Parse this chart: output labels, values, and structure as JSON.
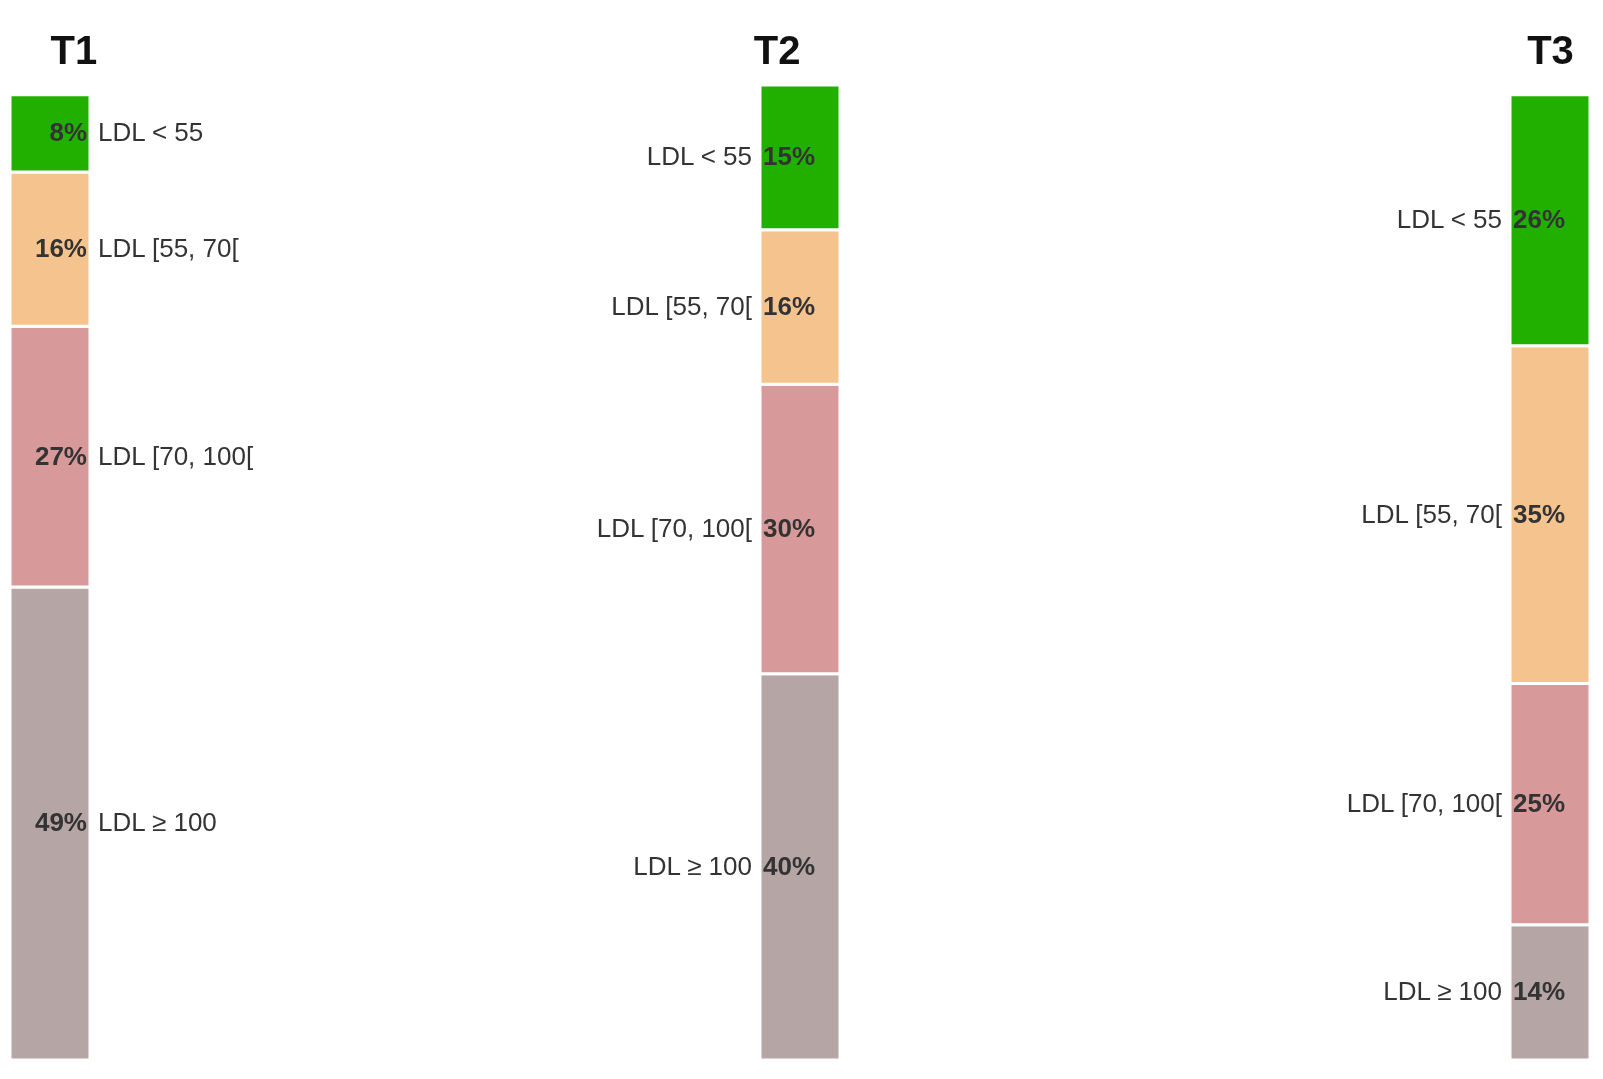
{
  "chart_data": {
    "type": "bar",
    "stacked": true,
    "categories": [
      "T1",
      "T2",
      "T3"
    ],
    "series": [
      {
        "name": "LDL ≥ 100",
        "color": "#b5a5a5",
        "values": [
          49,
          40,
          14
        ],
        "value_labels": [
          "49%",
          "40%",
          "14%"
        ]
      },
      {
        "name": "LDL [70, 100[",
        "color": "#d8999b",
        "values": [
          27,
          30,
          25
        ],
        "value_labels": [
          "27%",
          "30%",
          "25%"
        ]
      },
      {
        "name": "LDL [55, 70[",
        "color": "#f5c48e",
        "values": [
          16,
          16,
          35
        ],
        "value_labels": [
          "16%",
          "16%",
          "35%"
        ]
      },
      {
        "name": "LDL < 55",
        "color": "#22b000",
        "values": [
          8,
          15,
          26
        ],
        "value_labels": [
          "8%",
          "15%",
          "26%"
        ]
      }
    ]
  }
}
